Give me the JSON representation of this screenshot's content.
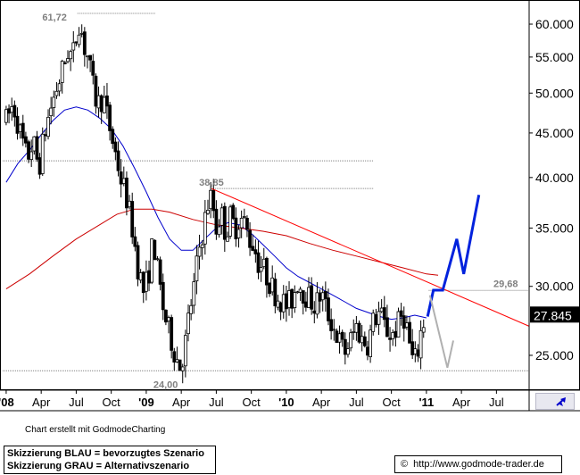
{
  "colors": {
    "background": "#ffffff",
    "candle": "#000000",
    "ma_short": "#0000cc",
    "ma_long": "#cc0000",
    "trendline": "#ff0000",
    "reference_line": "#808080",
    "scenario_blue": "#0022dd",
    "scenario_gray": "#b0b0b0",
    "price_box": "#000000",
    "nav_arrow": "#0000cc"
  },
  "icons": {
    "nav_button": "diagonal-arrow-icon",
    "copyright": "copyright-icon"
  },
  "chart_data": {
    "type": "candlestick",
    "y_scale": "log",
    "ylim": [
      22.8,
      63.5
    ],
    "y_ticks": [
      {
        "value": 25,
        "label": "25.000"
      },
      {
        "value": 30,
        "label": "30.000"
      },
      {
        "value": 35,
        "label": "35.000"
      },
      {
        "value": 40,
        "label": "40.000"
      },
      {
        "value": 45,
        "label": "45.000"
      },
      {
        "value": 50,
        "label": "50.000"
      },
      {
        "value": 55,
        "label": "55.000"
      },
      {
        "value": 60,
        "label": "60.000"
      }
    ],
    "x_ticks": [
      {
        "month": 0,
        "label": "'08",
        "bold": true
      },
      {
        "month": 3,
        "label": "Apr"
      },
      {
        "month": 6,
        "label": "Jul"
      },
      {
        "month": 9,
        "label": "Oct"
      },
      {
        "month": 12,
        "label": "'09",
        "bold": true
      },
      {
        "month": 15,
        "label": "Apr"
      },
      {
        "month": 18,
        "label": "Jul"
      },
      {
        "month": 21,
        "label": "Oct"
      },
      {
        "month": 24,
        "label": "'10",
        "bold": true
      },
      {
        "month": 27,
        "label": "Apr"
      },
      {
        "month": 30,
        "label": "Jul"
      },
      {
        "month": 33,
        "label": "Oct"
      },
      {
        "month": 36,
        "label": "'11",
        "bold": true
      },
      {
        "month": 39,
        "label": "Apr"
      },
      {
        "month": 42,
        "label": "Jul"
      }
    ],
    "xlim_months": [
      -0.3,
      44.8
    ],
    "price_path": [
      [
        0.0,
        46.5
      ],
      [
        0.6,
        48.5
      ],
      [
        1.2,
        45.0
      ],
      [
        1.8,
        42.0
      ],
      [
        2.3,
        44.0
      ],
      [
        2.8,
        41.0
      ],
      [
        3.3,
        45.0
      ],
      [
        3.8,
        48.0
      ],
      [
        4.3,
        50.5
      ],
      [
        4.8,
        53.0
      ],
      [
        5.3,
        56.0
      ],
      [
        5.7,
        55.0
      ],
      [
        6.0,
        58.0
      ],
      [
        6.3,
        61.0
      ],
      [
        6.6,
        57.0
      ],
      [
        7.0,
        55.0
      ],
      [
        7.4,
        51.0
      ],
      [
        7.8,
        48.5
      ],
      [
        8.3,
        49.5
      ],
      [
        8.8,
        46.0
      ],
      [
        9.3,
        43.0
      ],
      [
        9.8,
        40.0
      ],
      [
        10.3,
        38.0
      ],
      [
        10.8,
        35.0
      ],
      [
        11.3,
        31.5
      ],
      [
        11.8,
        29.5
      ],
      [
        12.2,
        31.0
      ],
      [
        12.6,
        34.0
      ],
      [
        13.0,
        31.0
      ],
      [
        13.5,
        28.0
      ],
      [
        14.0,
        26.5
      ],
      [
        14.5,
        25.0
      ],
      [
        14.9,
        24.3
      ],
      [
        15.3,
        25.5
      ],
      [
        15.7,
        28.0
      ],
      [
        16.1,
        30.0
      ],
      [
        16.5,
        33.0
      ],
      [
        16.9,
        35.0
      ],
      [
        17.3,
        37.5
      ],
      [
        17.6,
        38.0
      ],
      [
        18.0,
        35.0
      ],
      [
        18.4,
        36.5
      ],
      [
        18.8,
        34.5
      ],
      [
        19.2,
        36.0
      ],
      [
        19.6,
        35.0
      ],
      [
        20.0,
        36.0
      ],
      [
        20.4,
        35.5
      ],
      [
        20.8,
        34.0
      ],
      [
        21.2,
        33.5
      ],
      [
        21.6,
        32.0
      ],
      [
        22.0,
        31.5
      ],
      [
        22.5,
        30.5
      ],
      [
        23.0,
        29.5
      ],
      [
        23.5,
        29.0
      ],
      [
        24.0,
        28.5
      ],
      [
        24.5,
        29.0
      ],
      [
        25.0,
        30.5
      ],
      [
        25.5,
        29.5
      ],
      [
        26.0,
        29.0
      ],
      [
        26.5,
        28.5
      ],
      [
        27.0,
        29.5
      ],
      [
        27.5,
        28.0
      ],
      [
        28.0,
        27.0
      ],
      [
        28.5,
        26.0
      ],
      [
        29.0,
        25.2
      ],
      [
        29.5,
        26.0
      ],
      [
        30.0,
        27.0
      ],
      [
        30.5,
        26.0
      ],
      [
        31.0,
        25.8
      ],
      [
        31.5,
        27.5
      ],
      [
        32.0,
        28.0
      ],
      [
        32.5,
        26.8
      ],
      [
        33.0,
        26.3
      ],
      [
        33.5,
        27.0
      ],
      [
        34.0,
        28.0
      ],
      [
        34.3,
        27.0
      ],
      [
        34.6,
        25.5
      ],
      [
        34.9,
        24.4
      ],
      [
        35.2,
        25.0
      ],
      [
        35.5,
        26.5
      ],
      [
        35.8,
        27.4
      ]
    ],
    "high_label": {
      "month": 6.3,
      "value": 61.72,
      "text": "61,72"
    },
    "low_label": {
      "month": 14.9,
      "value": 24.0,
      "text": "24,00"
    },
    "mid_label": {
      "month": 17.6,
      "value": 38.85,
      "text": "38,85"
    },
    "right_label": {
      "value": 29.68,
      "text": "29,68"
    },
    "reference_lines": [
      {
        "value": 61.72,
        "from": 6.1,
        "to": 12.8
      },
      {
        "value": 41.8,
        "from": -0.3,
        "to": 31.5
      },
      {
        "value": 38.85,
        "from": 17.6,
        "to": 31.5
      },
      {
        "value": 29.68,
        "from": 36.2,
        "to": 44.8
      },
      {
        "value": 24.0,
        "from": -0.3,
        "to": 44.8
      }
    ],
    "series": [
      {
        "key": "ma_short",
        "kind": "moving-average",
        "points": [
          [
            0,
            39.5
          ],
          [
            1,
            41.5
          ],
          [
            2,
            43.0
          ],
          [
            3,
            44.8
          ],
          [
            4,
            46.5
          ],
          [
            5,
            47.8
          ],
          [
            6,
            48.2
          ],
          [
            7,
            47.8
          ],
          [
            8,
            46.8
          ],
          [
            9,
            45.5
          ],
          [
            10,
            43.5
          ],
          [
            11,
            41.0
          ],
          [
            12,
            38.5
          ],
          [
            13,
            36.0
          ],
          [
            14,
            34.0
          ],
          [
            15,
            33.0
          ],
          [
            16,
            33.0
          ],
          [
            17,
            34.0
          ],
          [
            18,
            35.0
          ],
          [
            19,
            35.5
          ],
          [
            20,
            35.3
          ],
          [
            21,
            34.5
          ],
          [
            22,
            33.5
          ],
          [
            23,
            32.5
          ],
          [
            24,
            31.5
          ],
          [
            25,
            30.8
          ],
          [
            26,
            30.3
          ],
          [
            27,
            29.8
          ],
          [
            28,
            29.3
          ],
          [
            29,
            28.8
          ],
          [
            30,
            28.3
          ],
          [
            31,
            28.0
          ],
          [
            32,
            27.7
          ],
          [
            33,
            27.5
          ],
          [
            34,
            27.6
          ],
          [
            35,
            27.8
          ],
          [
            36,
            27.6
          ]
        ]
      },
      {
        "key": "ma_long",
        "kind": "moving-average",
        "points": [
          [
            0,
            29.8
          ],
          [
            2,
            31.0
          ],
          [
            4,
            32.5
          ],
          [
            6,
            34.0
          ],
          [
            8,
            35.3
          ],
          [
            9.5,
            36.3
          ],
          [
            11,
            36.8
          ],
          [
            12.5,
            36.8
          ],
          [
            14,
            36.5
          ],
          [
            16,
            35.8
          ],
          [
            18,
            35.3
          ],
          [
            20,
            35.0
          ],
          [
            22,
            34.7
          ],
          [
            24,
            34.3
          ],
          [
            26,
            33.6
          ],
          [
            28,
            33.0
          ],
          [
            30,
            32.5
          ],
          [
            32,
            32.0
          ],
          [
            34,
            31.5
          ],
          [
            36,
            31.0
          ],
          [
            37,
            30.9
          ]
        ]
      }
    ],
    "trendline": {
      "from": [
        17.6,
        38.85
      ],
      "to": [
        44.8,
        27.0
      ]
    },
    "scenarios": [
      {
        "key": "scenario_blue",
        "points": [
          [
            36.1,
            27.7
          ],
          [
            36.6,
            29.7
          ],
          [
            37.4,
            29.7
          ],
          [
            38.6,
            34.0
          ],
          [
            39.2,
            31.0
          ],
          [
            40.5,
            38.2
          ]
        ]
      },
      {
        "key": "scenario_gray",
        "points": [
          [
            36.3,
            29.3
          ],
          [
            37.8,
            24.2
          ],
          [
            38.3,
            26.0
          ]
        ]
      }
    ],
    "last_price": {
      "value": 27.845,
      "text": "27.845"
    }
  },
  "footer": {
    "credit": "Chart erstellt mit GodmodeCharting",
    "legend_line1": "Skizzierung BLAU = bevorzugtes Szenario",
    "legend_line2": "Skizzierung GRAU = Alternativszenario",
    "copyright_symbol": "©",
    "url": "http://www.godmode-trader.de"
  }
}
